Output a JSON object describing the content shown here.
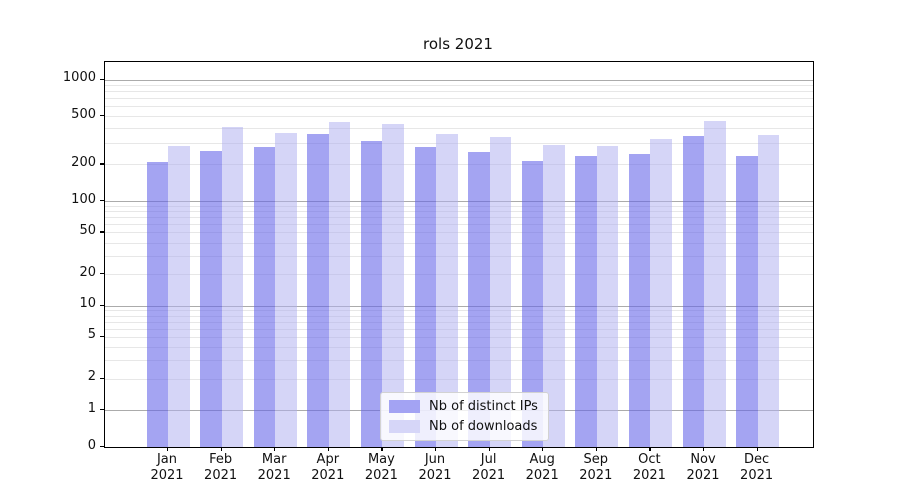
{
  "figure": {
    "title": "rols 2021"
  },
  "chart_data": {
    "type": "bar",
    "title": "rols 2021",
    "categories": [
      "Jan",
      "Feb",
      "Mar",
      "Apr",
      "May",
      "Jun",
      "Jul",
      "Aug",
      "Sep",
      "Oct",
      "Nov",
      "Dec"
    ],
    "year": "2021",
    "x_tick_labels": [
      "Jan 2021",
      "Feb 2021",
      "Mar 2021",
      "Apr 2021",
      "May 2021",
      "Jun 2021",
      "Jul 2021",
      "Aug 2021",
      "Sep 2021",
      "Oct 2021",
      "Nov 2021",
      "Dec 2021"
    ],
    "series": [
      {
        "name": "Nb of distinct IPs",
        "color": "#a3a3f3",
        "fill": "rgba(98,98,233,0.58)",
        "values": [
          210,
          256,
          280,
          354,
          314,
          278,
          251,
          212,
          233,
          244,
          343,
          234
        ]
      },
      {
        "name": "Nb of downloads",
        "color": "#d6d6f8",
        "fill": "rgba(174,174,240,0.52)",
        "values": [
          286,
          409,
          360,
          446,
          430,
          359,
          338,
          288,
          285,
          323,
          455,
          347
        ]
      }
    ],
    "yscale": "symlog",
    "yticks": [
      0,
      1,
      2,
      5,
      10,
      20,
      50,
      100,
      200,
      500,
      1000
    ],
    "ylim": [
      0,
      1400
    ],
    "grid": "both",
    "gridline_minor_color": "#e7e7e7",
    "gridline_major_color": "#ababab",
    "legend": {
      "position": "lower-center",
      "labels": [
        "Nb of distinct IPs",
        "Nb of downloads"
      ]
    }
  }
}
